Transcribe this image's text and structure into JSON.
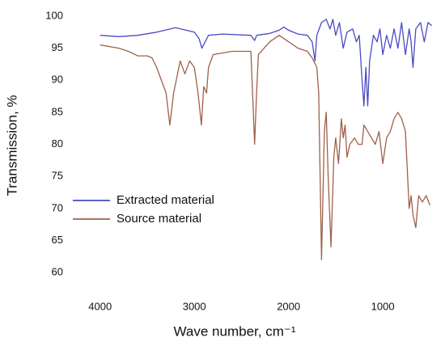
{
  "chart_data": {
    "type": "line",
    "x_label": "Wave number, cm⁻¹",
    "y_label": "Transmission, %",
    "xlim": [
      4530,
      400
    ],
    "ylim": [
      58,
      101
    ],
    "xticks": [
      4000,
      3000,
      2000,
      1000
    ],
    "yticks": [
      60,
      65,
      70,
      75,
      80,
      85,
      90,
      95,
      100
    ],
    "grid": false,
    "legend": "lower left",
    "series": [
      {
        "name": "Extracted material",
        "color": "#4a4ac4",
        "x": [
          4000,
          3800,
          3600,
          3400,
          3200,
          3000,
          2950,
          2920,
          2850,
          2700,
          2400,
          2360,
          2340,
          2200,
          2100,
          2050,
          2000,
          1900,
          1800,
          1750,
          1720,
          1700,
          1650,
          1600,
          1560,
          1530,
          1500,
          1460,
          1420,
          1380,
          1320,
          1280,
          1250,
          1220,
          1200,
          1180,
          1160,
          1140,
          1100,
          1060,
          1030,
          1000,
          960,
          920,
          880,
          840,
          800,
          760,
          720,
          700,
          680,
          650,
          600,
          560,
          520,
          480
        ],
        "values": [
          97,
          96.8,
          97,
          97.5,
          98.2,
          97.5,
          96.5,
          95,
          97,
          97.2,
          97,
          96.2,
          97,
          97.3,
          97.8,
          98.3,
          97.8,
          97.2,
          97,
          96,
          93,
          97,
          99,
          99.5,
          98,
          99.5,
          97,
          99,
          95,
          97.5,
          98,
          96,
          97,
          90,
          86,
          92,
          86,
          93,
          97,
          96,
          98,
          94,
          97,
          95,
          98,
          95,
          99,
          94,
          98,
          96,
          92,
          98,
          99,
          96,
          99,
          98.5
        ]
      },
      {
        "name": "Source material",
        "color": "#a0604a",
        "x": [
          4000,
          3800,
          3700,
          3600,
          3500,
          3450,
          3400,
          3300,
          3260,
          3220,
          3150,
          3100,
          3050,
          3000,
          2960,
          2925,
          2900,
          2870,
          2850,
          2800,
          2600,
          2400,
          2360,
          2340,
          2320,
          2200,
          2100,
          2000,
          1900,
          1800,
          1750,
          1700,
          1680,
          1650,
          1620,
          1600,
          1580,
          1550,
          1520,
          1500,
          1470,
          1440,
          1420,
          1400,
          1380,
          1350,
          1300,
          1260,
          1220,
          1200,
          1160,
          1120,
          1080,
          1040,
          1000,
          960,
          920,
          880,
          840,
          800,
          760,
          720,
          700,
          680,
          650,
          620,
          580,
          540,
          500
        ],
        "values": [
          95.5,
          95,
          94.5,
          93.8,
          93.8,
          93.5,
          92,
          88,
          83,
          88,
          93,
          91,
          93,
          92,
          88,
          83,
          89,
          88,
          92,
          94,
          94.5,
          94.5,
          80,
          88,
          94,
          96,
          97,
          96,
          95,
          94.5,
          93.5,
          92,
          88,
          62,
          82,
          85,
          75,
          64,
          78,
          81,
          77,
          84,
          81,
          83,
          78,
          80,
          81,
          80,
          80,
          83,
          82,
          81,
          80,
          82,
          77,
          81,
          82,
          84,
          85,
          84,
          82,
          70,
          72,
          69,
          67,
          72,
          71,
          72,
          70.5
        ]
      }
    ]
  }
}
